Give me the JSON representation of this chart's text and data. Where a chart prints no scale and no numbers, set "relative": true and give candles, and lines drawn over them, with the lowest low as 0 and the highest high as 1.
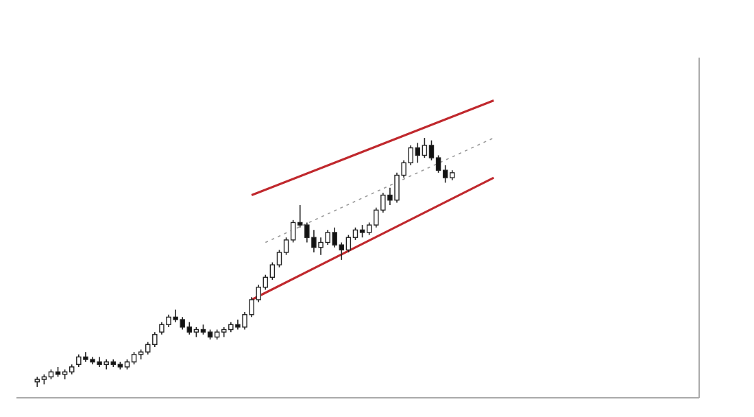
{
  "chart_data": {
    "type": "candlestick",
    "relative": true,
    "categories": [
      null,
      null,
      null,
      null,
      null,
      null,
      null,
      null,
      null,
      null,
      null,
      null,
      null,
      null,
      null,
      null,
      null,
      null,
      null,
      null,
      null,
      null,
      null,
      null,
      null,
      null,
      null,
      null,
      null,
      null,
      null,
      null,
      null,
      null,
      null,
      null,
      null,
      null,
      null,
      null,
      null,
      null,
      null,
      null,
      null,
      null,
      null,
      null,
      null,
      null,
      null,
      null,
      null,
      null,
      null,
      null,
      null,
      null,
      null,
      null,
      null,
      null,
      null,
      null,
      null,
      null,
      null
    ],
    "ohlc": [
      [
        0.02,
        0.04,
        0,
        0.03
      ],
      [
        0.03,
        0.05,
        0.01,
        0.04
      ],
      [
        0.04,
        0.07,
        0.03,
        0.06
      ],
      [
        0.06,
        0.08,
        0.04,
        0.05
      ],
      [
        0.05,
        0.07,
        0.03,
        0.06
      ],
      [
        0.06,
        0.09,
        0.05,
        0.08
      ],
      [
        0.09,
        0.13,
        0.08,
        0.12
      ],
      [
        0.12,
        0.14,
        0.1,
        0.11
      ],
      [
        0.11,
        0.12,
        0.09,
        0.1
      ],
      [
        0.1,
        0.12,
        0.08,
        0.09
      ],
      [
        0.09,
        0.11,
        0.07,
        0.1
      ],
      [
        0.1,
        0.11,
        0.08,
        0.09
      ],
      [
        0.09,
        0.1,
        0.07,
        0.08
      ],
      [
        0.08,
        0.11,
        0.07,
        0.1
      ],
      [
        0.1,
        0.14,
        0.09,
        0.13
      ],
      [
        0.13,
        0.15,
        0.11,
        0.14
      ],
      [
        0.14,
        0.18,
        0.13,
        0.17
      ],
      [
        0.17,
        0.22,
        0.16,
        0.21
      ],
      [
        0.22,
        0.26,
        0.21,
        0.25
      ],
      [
        0.25,
        0.29,
        0.24,
        0.28
      ],
      [
        0.28,
        0.31,
        0.26,
        0.27
      ],
      [
        0.27,
        0.28,
        0.23,
        0.24
      ],
      [
        0.24,
        0.26,
        0.21,
        0.22
      ],
      [
        0.22,
        0.24,
        0.2,
        0.23
      ],
      [
        0.23,
        0.25,
        0.21,
        0.22
      ],
      [
        0.22,
        0.23,
        0.19,
        0.2
      ],
      [
        0.2,
        0.23,
        0.19,
        0.22
      ],
      [
        0.22,
        0.24,
        0.2,
        0.23
      ],
      [
        0.23,
        0.26,
        0.22,
        0.25
      ],
      [
        0.25,
        0.27,
        0.23,
        0.24
      ],
      [
        0.24,
        0.3,
        0.23,
        0.29
      ],
      [
        0.29,
        0.36,
        0.28,
        0.35
      ],
      [
        0.35,
        0.41,
        0.34,
        0.4
      ],
      [
        0.4,
        0.45,
        0.39,
        0.44
      ],
      [
        0.44,
        0.5,
        0.43,
        0.49
      ],
      [
        0.49,
        0.55,
        0.48,
        0.54
      ],
      [
        0.54,
        0.6,
        0.53,
        0.59
      ],
      [
        0.59,
        0.67,
        0.58,
        0.66
      ],
      [
        0.66,
        0.73,
        0.64,
        0.65
      ],
      [
        0.65,
        0.66,
        0.58,
        0.6
      ],
      [
        0.6,
        0.63,
        0.54,
        0.56
      ],
      [
        0.56,
        0.6,
        0.53,
        0.58
      ],
      [
        0.58,
        0.63,
        0.57,
        0.62
      ],
      [
        0.62,
        0.64,
        0.56,
        0.57
      ],
      [
        0.57,
        0.58,
        0.51,
        0.55
      ],
      [
        0.55,
        0.61,
        0.54,
        0.6
      ],
      [
        0.6,
        0.64,
        0.59,
        0.63
      ],
      [
        0.63,
        0.65,
        0.6,
        0.62
      ],
      [
        0.62,
        0.66,
        0.61,
        0.65
      ],
      [
        0.65,
        0.72,
        0.64,
        0.71
      ],
      [
        0.71,
        0.78,
        0.7,
        0.77
      ],
      [
        0.77,
        0.8,
        0.73,
        0.75
      ],
      [
        0.75,
        0.86,
        0.74,
        0.85
      ],
      [
        0.85,
        0.91,
        0.84,
        0.9
      ],
      [
        0.9,
        0.97,
        0.89,
        0.96
      ],
      [
        0.96,
        0.98,
        0.9,
        0.93
      ],
      [
        0.93,
        1,
        0.92,
        0.97
      ],
      [
        0.97,
        0.99,
        0.91,
        0.92
      ],
      [
        0.92,
        0.93,
        0.86,
        0.87
      ],
      [
        0.87,
        0.89,
        0.82,
        0.84
      ],
      [
        0.84,
        0.87,
        0.83,
        0.86
      ],
      null,
      null,
      null,
      null,
      null,
      null
    ],
    "series": [
      {
        "type": "line",
        "values": [
          null,
          null,
          null,
          null,
          null,
          null,
          null,
          null,
          null,
          null,
          null,
          null,
          null,
          null,
          null,
          null,
          null,
          null,
          null,
          null,
          null,
          null,
          null,
          null,
          null,
          null,
          null,
          null,
          null,
          null,
          null,
          0.77,
          null,
          null,
          null,
          null,
          null,
          null,
          null,
          null,
          null,
          null,
          null,
          null,
          null,
          null,
          null,
          null,
          null,
          null,
          null,
          null,
          null,
          null,
          null,
          null,
          null,
          null,
          null,
          null,
          null,
          null,
          null,
          null,
          null,
          null,
          1.15
        ],
        "color": "#c0282d",
        "line_style": "solid"
      },
      {
        "type": "line",
        "values": [
          null,
          null,
          null,
          null,
          null,
          null,
          null,
          null,
          null,
          null,
          null,
          null,
          null,
          null,
          null,
          null,
          null,
          null,
          null,
          null,
          null,
          null,
          null,
          null,
          null,
          null,
          null,
          null,
          null,
          null,
          null,
          0.35,
          null,
          null,
          null,
          null,
          null,
          null,
          null,
          null,
          null,
          null,
          null,
          null,
          null,
          null,
          null,
          null,
          null,
          null,
          null,
          null,
          null,
          null,
          null,
          null,
          null,
          null,
          null,
          null,
          null,
          null,
          null,
          null,
          null,
          null,
          0.84
        ],
        "color": "#c0282d",
        "line_style": "solid"
      },
      {
        "type": "line",
        "values": [
          null,
          null,
          null,
          null,
          null,
          null,
          null,
          null,
          null,
          null,
          null,
          null,
          null,
          null,
          null,
          null,
          null,
          null,
          null,
          null,
          null,
          null,
          null,
          null,
          null,
          null,
          null,
          null,
          null,
          null,
          null,
          null,
          null,
          0.58,
          null,
          null,
          null,
          null,
          null,
          null,
          null,
          null,
          null,
          null,
          null,
          null,
          null,
          null,
          null,
          null,
          null,
          null,
          null,
          null,
          null,
          null,
          null,
          null,
          null,
          null,
          null,
          null,
          null,
          null,
          null,
          null,
          1.0
        ],
        "color": "#999999",
        "line_style": "dotted"
      }
    ]
  }
}
